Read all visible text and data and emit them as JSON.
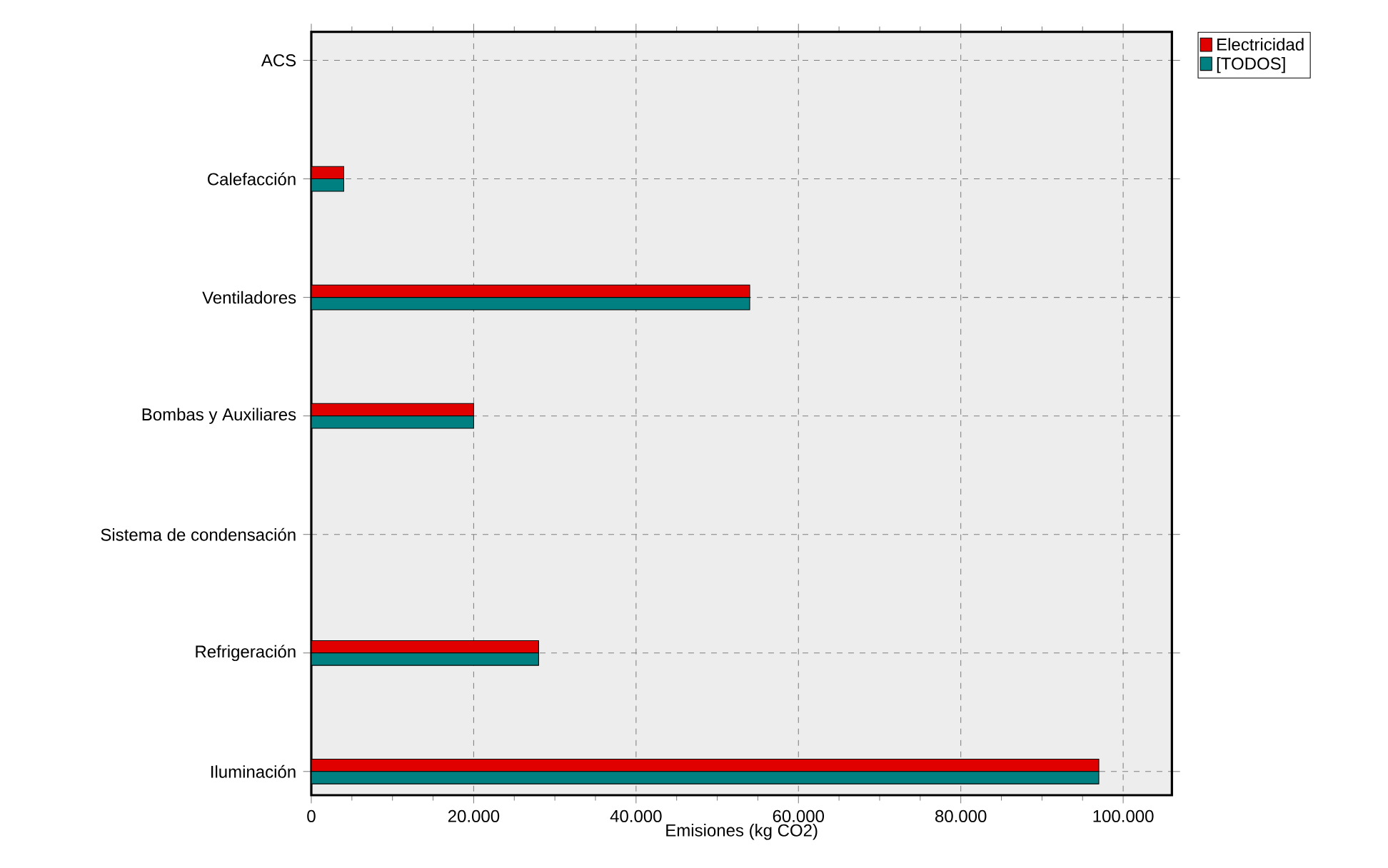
{
  "chart_data": {
    "type": "bar",
    "orientation": "horizontal",
    "xlabel": "Emisiones (kg CO2)",
    "categories": [
      "ACS",
      "Calefacción",
      "Ventiladores",
      "Bombas y Auxiliares",
      "Sistema de condensación",
      "Refrigeración",
      "Iluminación"
    ],
    "series": [
      {
        "name": "Electricidad",
        "color": "#e00000",
        "values": [
          0,
          4000,
          54000,
          20000,
          0,
          28000,
          97000
        ]
      },
      {
        "name": "[TODOS]",
        "color": "#008080",
        "values": [
          0,
          4000,
          54000,
          20000,
          0,
          28000,
          97000
        ]
      }
    ],
    "xlim": [
      0,
      106000
    ],
    "xticks": [
      0,
      {
        "value": 20000,
        "label": "20.000"
      },
      {
        "value": 40000,
        "label": "40.000"
      },
      {
        "value": 60000,
        "label": "60.000"
      },
      {
        "value": 80000,
        "label": "80.000"
      },
      {
        "value": 100000,
        "label": "100.000"
      }
    ],
    "grid": true,
    "legend": "top right"
  }
}
